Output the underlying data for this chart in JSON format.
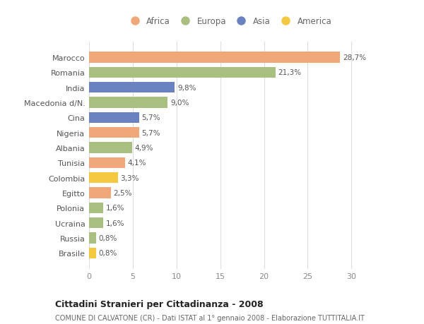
{
  "countries": [
    "Marocco",
    "Romania",
    "India",
    "Macedonia d/N.",
    "Cina",
    "Nigeria",
    "Albania",
    "Tunisia",
    "Colombia",
    "Egitto",
    "Polonia",
    "Ucraina",
    "Russia",
    "Brasile"
  ],
  "values": [
    28.7,
    21.3,
    9.8,
    9.0,
    5.7,
    5.7,
    4.9,
    4.1,
    3.3,
    2.5,
    1.6,
    1.6,
    0.8,
    0.8
  ],
  "labels": [
    "28,7%",
    "21,3%",
    "9,8%",
    "9,0%",
    "5,7%",
    "5,7%",
    "4,9%",
    "4,1%",
    "3,3%",
    "2,5%",
    "1,6%",
    "1,6%",
    "0,8%",
    "0,8%"
  ],
  "colors": [
    "#F0A87A",
    "#A8BF80",
    "#6B82C0",
    "#A8BF80",
    "#6B82C0",
    "#F0A87A",
    "#A8BF80",
    "#F0A87A",
    "#F5C842",
    "#F0A87A",
    "#A8BF80",
    "#A8BF80",
    "#A8BF80",
    "#F5C842"
  ],
  "legend_items": [
    {
      "label": "Africa",
      "color": "#F0A87A"
    },
    {
      "label": "Europa",
      "color": "#A8BF80"
    },
    {
      "label": "Asia",
      "color": "#6B82C0"
    },
    {
      "label": "America",
      "color": "#F5C842"
    }
  ],
  "xlim": [
    0,
    32
  ],
  "xticks": [
    0,
    5,
    10,
    15,
    20,
    25,
    30
  ],
  "title": "Cittadini Stranieri per Cittadinanza - 2008",
  "subtitle": "COMUNE DI CALVATONE (CR) - Dati ISTAT al 1° gennaio 2008 - Elaborazione TUTTITALIA.IT",
  "bg_color": "#FFFFFF",
  "grid_color": "#DDDDDD",
  "bar_height": 0.72
}
